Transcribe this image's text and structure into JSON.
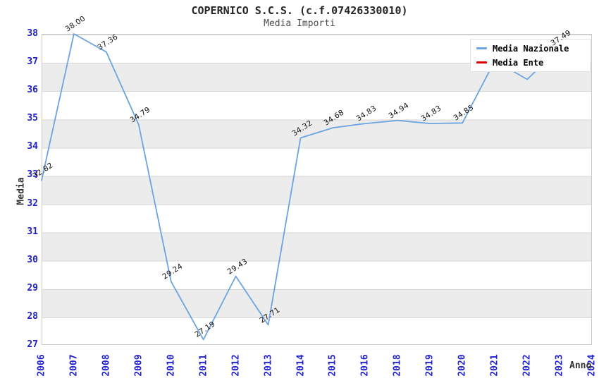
{
  "chart_data": {
    "type": "line",
    "title": "COPERNICO S.C.S. (c.f.07426330010)",
    "subtitle": "Media Importi",
    "xlabel": "Anno",
    "ylabel": "Media",
    "ylim": [
      27,
      38
    ],
    "ytick_step": 1,
    "grid": "horizontal-bands-alternating",
    "legend_position": "top-right",
    "categories": [
      "2006",
      "2007",
      "2008",
      "2009",
      "2010",
      "2011",
      "2012",
      "2013",
      "2014",
      "2015",
      "2016",
      "2018",
      "2019",
      "2020",
      "2021",
      "2022",
      "2023",
      "2024"
    ],
    "series": [
      {
        "name": "Media Nazionale",
        "color": "#6BA4E0",
        "values": [
          32.82,
          38.0,
          37.36,
          34.79,
          29.24,
          27.19,
          29.43,
          27.71,
          34.32,
          34.68,
          34.83,
          34.94,
          34.83,
          34.85,
          37.05,
          36.39,
          37.49,
          null
        ],
        "point_labels": [
          "32.82",
          "38.00",
          "37.36",
          "34.79",
          "29.24",
          "27.19",
          "29.43",
          "27.71",
          "34.32",
          "34.68",
          "34.83",
          "34.94",
          "34.83",
          "34.85",
          "",
          "",
          "37.49",
          ""
        ]
      },
      {
        "name": "Media Ente",
        "color": "#DD0000",
        "values": []
      }
    ]
  },
  "colors": {
    "tick_label": "#2121CE",
    "band_gray": "#ECECEC",
    "grid_line": "#D6D6D6",
    "plot_border": "#C9C9C9",
    "title_text": "#262626",
    "data_label": "#111111"
  }
}
